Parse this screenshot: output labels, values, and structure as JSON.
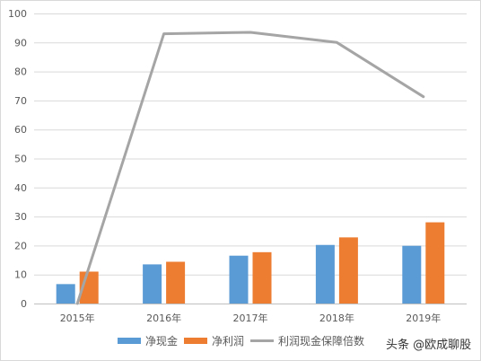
{
  "chart_data": {
    "type": "bar",
    "categories": [
      "2015年",
      "2016年",
      "2017年",
      "2018年",
      "2019年"
    ],
    "series": [
      {
        "name": "净现金",
        "type": "bar",
        "color": "#5b9bd5",
        "values": [
          6.7,
          13.5,
          16.5,
          20.2,
          19.9
        ]
      },
      {
        "name": "净利润",
        "type": "bar",
        "color": "#ed7d31",
        "values": [
          11.0,
          14.4,
          17.7,
          22.8,
          28.0
        ]
      },
      {
        "name": "利润现金保障倍数",
        "type": "line",
        "color": "#a5a5a5",
        "values": [
          0,
          93.0,
          93.5,
          90.0,
          71.3
        ]
      }
    ],
    "ylim": [
      0,
      100
    ],
    "yticks": [
      0,
      10,
      20,
      30,
      40,
      50,
      60,
      70,
      80,
      90,
      100
    ],
    "grid": true,
    "legend_position": "bottom"
  },
  "watermark": "头条 @欧成聊股"
}
